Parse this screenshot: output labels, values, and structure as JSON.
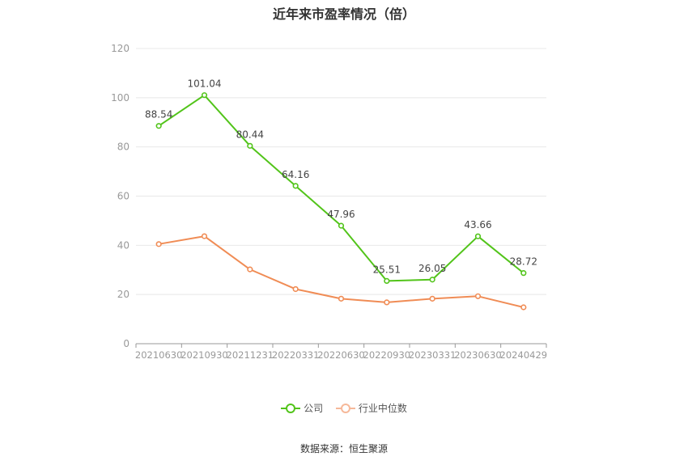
{
  "chart_data": {
    "type": "line",
    "title": "近年来市盈率情况（倍）",
    "categories": [
      "20210630",
      "20210930",
      "20211231",
      "20220331",
      "20220630",
      "20220930",
      "20230331",
      "20230630",
      "20240429"
    ],
    "series": [
      {
        "name": "公司",
        "color": "#52c41a",
        "values": [
          88.54,
          101.04,
          80.44,
          64.16,
          47.96,
          25.51,
          26.05,
          43.66,
          28.72
        ],
        "labels": [
          "88.54",
          "101.04",
          "80.44",
          "64.16",
          "47.96",
          "25.51",
          "26.05",
          "43.66",
          "28.72"
        ]
      },
      {
        "name": "行业中位数",
        "color": "#f08c55",
        "values": [
          40.5,
          43.7,
          30.2,
          22.2,
          18.3,
          16.8,
          18.3,
          19.3,
          14.8
        ]
      }
    ],
    "yticks": [
      "0",
      "20",
      "40",
      "60",
      "80",
      "100",
      "120"
    ],
    "ylim": [
      0,
      120
    ],
    "xlabel": "",
    "ylabel": "",
    "grid": true,
    "legend": "bottom"
  },
  "source": "数据来源：恒生聚源"
}
